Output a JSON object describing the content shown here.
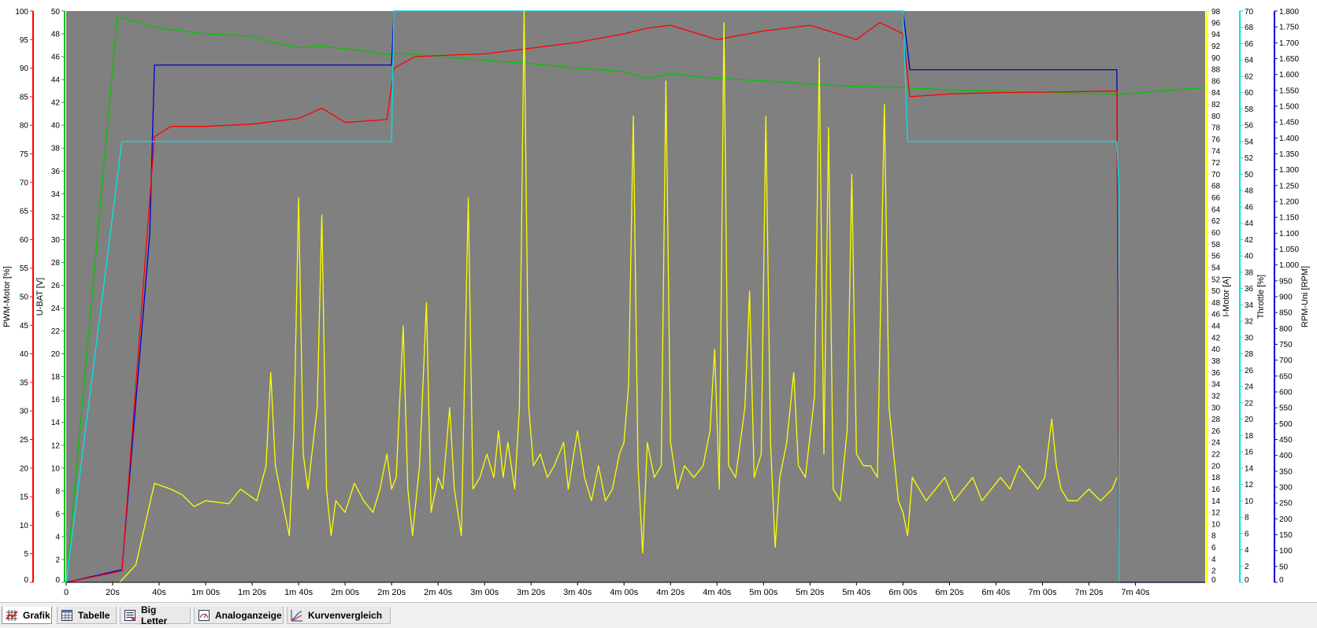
{
  "tabs": [
    {
      "label": "Grafik",
      "icon": "grid-chart-icon",
      "active": true
    },
    {
      "label": "Tabelle",
      "icon": "table-icon",
      "active": false
    },
    {
      "label": "Big Letter",
      "icon": "big-letter-icon",
      "active": false
    },
    {
      "label": "Analoganzeige",
      "icon": "gauge-icon",
      "active": false
    },
    {
      "label": "Kurvenvergleich",
      "icon": "curve-compare-icon",
      "active": false
    }
  ],
  "colors": {
    "plot_background": "#808080",
    "pwm": "#ff0000",
    "ubat": "#00c800",
    "imotor": "#ffff00",
    "throttle": "#00e5e5",
    "rpm": "#0000cd"
  },
  "chart_data": {
    "type": "line",
    "x_unit": "s",
    "x_range": [
      0,
      490
    ],
    "x_ticks": [
      {
        "t": 0,
        "label": "0"
      },
      {
        "t": 20,
        "label": "20s"
      },
      {
        "t": 40,
        "label": "40s"
      },
      {
        "t": 60,
        "label": "1m 00s"
      },
      {
        "t": 80,
        "label": "1m 20s"
      },
      {
        "t": 100,
        "label": "1m 40s"
      },
      {
        "t": 120,
        "label": "2m 00s"
      },
      {
        "t": 140,
        "label": "2m 20s"
      },
      {
        "t": 160,
        "label": "2m 40s"
      },
      {
        "t": 180,
        "label": "3m 00s"
      },
      {
        "t": 200,
        "label": "3m 20s"
      },
      {
        "t": 220,
        "label": "3m 40s"
      },
      {
        "t": 240,
        "label": "4m 00s"
      },
      {
        "t": 260,
        "label": "4m 20s"
      },
      {
        "t": 280,
        "label": "4m 40s"
      },
      {
        "t": 300,
        "label": "5m 00s"
      },
      {
        "t": 320,
        "label": "5m 20s"
      },
      {
        "t": 340,
        "label": "5m 40s"
      },
      {
        "t": 360,
        "label": "6m 00s"
      },
      {
        "t": 380,
        "label": "6m 20s"
      },
      {
        "t": 400,
        "label": "6m 40s"
      },
      {
        "t": 420,
        "label": "7m 00s"
      },
      {
        "t": 440,
        "label": "7m 20s"
      },
      {
        "t": 460,
        "label": "7m 40s"
      }
    ],
    "axes": [
      {
        "id": "pwm",
        "label": "PWM-Motor [%]",
        "min": 0,
        "max": 100,
        "step": 5,
        "color": "#ff0000",
        "decimals": 0
      },
      {
        "id": "ubat",
        "label": "U-BAT [V]",
        "min": 0,
        "max": 50,
        "step": 2,
        "color": "#00c800",
        "decimals": 0
      },
      {
        "id": "imotor",
        "label": "I-Motor [A]",
        "min": 0,
        "max": 98,
        "step": 2,
        "color": "#ffff00",
        "decimals": 0
      },
      {
        "id": "throttle",
        "label": "Throttle [%]",
        "min": 0,
        "max": 70,
        "step": 2,
        "color": "#00e5e5",
        "decimals": 0
      },
      {
        "id": "rpm",
        "label": "RPM-Uni [RPM]",
        "min": 0,
        "max": 1800,
        "step": 50,
        "color": "#0000cd",
        "decimals": 0
      }
    ],
    "series": [
      {
        "axis": "ubat",
        "color": "#00c800",
        "points": [
          [
            0,
            0
          ],
          [
            22,
            49.5
          ],
          [
            40,
            48.5
          ],
          [
            60,
            48
          ],
          [
            80,
            47.8
          ],
          [
            90,
            47.2
          ],
          [
            100,
            46.8
          ],
          [
            110,
            46.9
          ],
          [
            120,
            46.7
          ],
          [
            138,
            46.2
          ],
          [
            145,
            46.3
          ],
          [
            160,
            46.0
          ],
          [
            180,
            45.7
          ],
          [
            200,
            45.4
          ],
          [
            220,
            45.0
          ],
          [
            240,
            44.7
          ],
          [
            250,
            44.1
          ],
          [
            260,
            44.5
          ],
          [
            280,
            44.1
          ],
          [
            300,
            43.9
          ],
          [
            320,
            43.6
          ],
          [
            340,
            43.4
          ],
          [
            360,
            43.3
          ],
          [
            380,
            43.1
          ],
          [
            400,
            43.0
          ],
          [
            420,
            42.9
          ],
          [
            440,
            42.8
          ],
          [
            452,
            42.7
          ],
          [
            490,
            43.3
          ]
        ]
      },
      {
        "axis": "rpm",
        "color": "#0000cd",
        "points": [
          [
            0,
            0
          ],
          [
            24,
            40
          ],
          [
            36,
            1100
          ],
          [
            38,
            1630
          ],
          [
            40,
            1630
          ],
          [
            140,
            1630
          ],
          [
            141,
            1800
          ],
          [
            360,
            1800
          ],
          [
            363,
            1615
          ],
          [
            452,
            1615
          ],
          [
            453,
            0
          ],
          [
            490,
            0
          ]
        ]
      },
      {
        "axis": "pwm",
        "color": "#ff0000",
        "points": [
          [
            0,
            0
          ],
          [
            24,
            2
          ],
          [
            38,
            78
          ],
          [
            45,
            79.8
          ],
          [
            60,
            79.8
          ],
          [
            80,
            80.2
          ],
          [
            100,
            81.2
          ],
          [
            110,
            83
          ],
          [
            120,
            80.5
          ],
          [
            138,
            81
          ],
          [
            141,
            90
          ],
          [
            150,
            92
          ],
          [
            160,
            92.2
          ],
          [
            180,
            92.5
          ],
          [
            200,
            93.5
          ],
          [
            220,
            94.5
          ],
          [
            240,
            96
          ],
          [
            250,
            97
          ],
          [
            260,
            97.5
          ],
          [
            280,
            95
          ],
          [
            300,
            96.5
          ],
          [
            320,
            97.5
          ],
          [
            340,
            95
          ],
          [
            350,
            98
          ],
          [
            360,
            96
          ],
          [
            363,
            85
          ],
          [
            380,
            85.5
          ],
          [
            400,
            85.7
          ],
          [
            420,
            85.8
          ],
          [
            452,
            86
          ],
          [
            453,
            0
          ]
        ]
      },
      {
        "axis": "throttle",
        "color": "#00e5e5",
        "points": [
          [
            0,
            0
          ],
          [
            24,
            54
          ],
          [
            140,
            54
          ],
          [
            141,
            70
          ],
          [
            360,
            70
          ],
          [
            362,
            54
          ],
          [
            452,
            54
          ],
          [
            453,
            48
          ],
          [
            453,
            0
          ]
        ]
      },
      {
        "axis": "imotor",
        "color": "#ffff00",
        "points": [
          [
            23,
            0
          ],
          [
            30,
            3
          ],
          [
            34,
            10
          ],
          [
            38,
            17
          ],
          [
            45,
            16
          ],
          [
            50,
            15
          ],
          [
            55,
            13
          ],
          [
            60,
            14
          ],
          [
            70,
            13.5
          ],
          [
            75,
            16
          ],
          [
            82,
            14
          ],
          [
            86,
            20
          ],
          [
            88,
            36
          ],
          [
            90,
            20
          ],
          [
            93,
            14
          ],
          [
            96,
            8
          ],
          [
            98,
            26
          ],
          [
            100,
            66
          ],
          [
            102,
            22
          ],
          [
            104,
            16
          ],
          [
            108,
            30
          ],
          [
            110,
            63
          ],
          [
            112,
            16
          ],
          [
            114,
            8
          ],
          [
            116,
            14
          ],
          [
            120,
            12
          ],
          [
            124,
            17
          ],
          [
            128,
            14
          ],
          [
            132,
            12
          ],
          [
            135,
            16
          ],
          [
            138,
            22
          ],
          [
            140,
            16
          ],
          [
            142,
            18
          ],
          [
            145,
            44
          ],
          [
            147,
            16
          ],
          [
            149,
            8
          ],
          [
            152,
            20
          ],
          [
            155,
            48
          ],
          [
            157,
            12
          ],
          [
            160,
            18
          ],
          [
            162,
            16
          ],
          [
            165,
            30
          ],
          [
            167,
            16
          ],
          [
            170,
            8
          ],
          [
            173,
            66
          ],
          [
            175,
            16
          ],
          [
            178,
            18
          ],
          [
            181,
            22
          ],
          [
            184,
            18
          ],
          [
            186,
            26
          ],
          [
            188,
            18
          ],
          [
            190,
            24
          ],
          [
            193,
            16
          ],
          [
            195,
            30
          ],
          [
            197,
            98
          ],
          [
            199,
            30
          ],
          [
            201,
            20
          ],
          [
            204,
            22
          ],
          [
            207,
            18
          ],
          [
            210,
            20
          ],
          [
            214,
            24
          ],
          [
            216,
            16
          ],
          [
            220,
            26
          ],
          [
            223,
            18
          ],
          [
            226,
            14
          ],
          [
            229,
            20
          ],
          [
            232,
            14
          ],
          [
            235,
            16
          ],
          [
            238,
            22
          ],
          [
            240,
            24
          ],
          [
            242,
            34
          ],
          [
            244,
            80
          ],
          [
            246,
            20
          ],
          [
            248,
            5
          ],
          [
            250,
            24
          ],
          [
            253,
            18
          ],
          [
            256,
            20
          ],
          [
            258,
            86
          ],
          [
            260,
            24
          ],
          [
            263,
            16
          ],
          [
            266,
            20
          ],
          [
            270,
            18
          ],
          [
            274,
            20
          ],
          [
            277,
            26
          ],
          [
            279,
            40
          ],
          [
            281,
            16
          ],
          [
            283,
            96
          ],
          [
            285,
            20
          ],
          [
            288,
            18
          ],
          [
            292,
            30
          ],
          [
            294,
            50
          ],
          [
            296,
            18
          ],
          [
            299,
            22
          ],
          [
            301,
            80
          ],
          [
            303,
            24
          ],
          [
            305,
            6
          ],
          [
            307,
            18
          ],
          [
            310,
            24
          ],
          [
            313,
            36
          ],
          [
            315,
            20
          ],
          [
            318,
            18
          ],
          [
            322,
            32
          ],
          [
            324,
            90
          ],
          [
            326,
            22
          ],
          [
            328,
            78
          ],
          [
            330,
            16
          ],
          [
            333,
            14
          ],
          [
            336,
            26
          ],
          [
            338,
            70
          ],
          [
            340,
            22
          ],
          [
            343,
            20
          ],
          [
            346,
            20
          ],
          [
            349,
            18
          ],
          [
            352,
            82
          ],
          [
            354,
            30
          ],
          [
            356,
            22
          ],
          [
            358,
            14
          ],
          [
            360,
            12
          ],
          [
            362,
            8
          ],
          [
            364,
            18
          ],
          [
            367,
            16
          ],
          [
            370,
            14
          ],
          [
            374,
            16
          ],
          [
            378,
            18
          ],
          [
            382,
            14
          ],
          [
            386,
            16
          ],
          [
            390,
            18
          ],
          [
            394,
            14
          ],
          [
            398,
            16
          ],
          [
            402,
            18
          ],
          [
            406,
            16
          ],
          [
            410,
            20
          ],
          [
            414,
            18
          ],
          [
            418,
            16
          ],
          [
            421,
            18
          ],
          [
            424,
            28
          ],
          [
            426,
            20
          ],
          [
            428,
            16
          ],
          [
            431,
            14
          ],
          [
            435,
            14
          ],
          [
            440,
            16
          ],
          [
            445,
            14
          ],
          [
            450,
            16
          ],
          [
            452,
            18
          ]
        ]
      }
    ]
  }
}
